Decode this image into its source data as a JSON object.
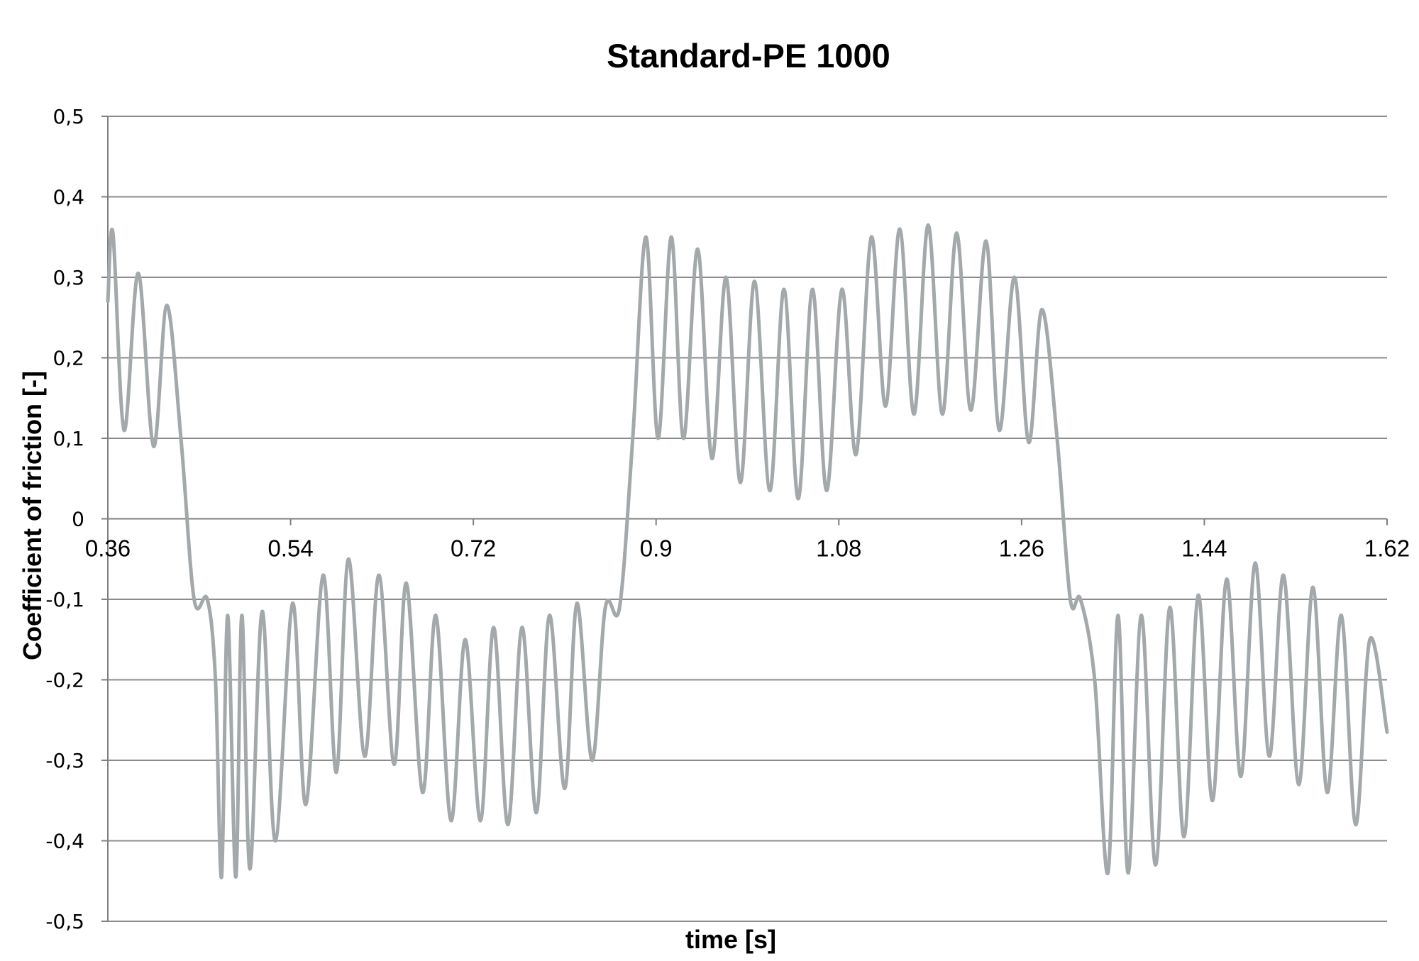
{
  "chart_data": {
    "type": "line",
    "title": "Standard-PE 1000",
    "xlabel": "time [s]",
    "ylabel": "Coefficient of friction [-]",
    "xlim": [
      0.36,
      1.62
    ],
    "ylim": [
      -0.5,
      0.5
    ],
    "x_ticks": [
      0.36,
      0.54,
      0.72,
      0.9,
      1.08,
      1.26,
      1.44,
      1.62
    ],
    "x_tick_labels": [
      "0.36",
      "0.54",
      "0.72",
      "0.9",
      "1.08",
      "1.26",
      "1.44",
      "1.62"
    ],
    "y_ticks": [
      0.5,
      0.4,
      0.3,
      0.2,
      0.1,
      0,
      -0.1,
      -0.2,
      -0.3,
      -0.4,
      -0.5
    ],
    "y_tick_labels": [
      "0,5",
      "0,4",
      "0,3",
      "0,2",
      "0,1",
      "0",
      "-0,1",
      "-0,2",
      "-0,3",
      "-0,4",
      "-0,5"
    ],
    "grid": true,
    "legend": "none",
    "colors": {
      "line": "#a3a8aa",
      "grid": "#8c8c8c",
      "axis": "#7f7f7f"
    },
    "series": [
      {
        "x": [
          0.36,
          0.365,
          0.376,
          0.39,
          0.405,
          0.418,
          0.432,
          0.445,
          0.458,
          0.466,
          0.472,
          0.478,
          0.486,
          0.492,
          0.5,
          0.512,
          0.525,
          0.542,
          0.555,
          0.572,
          0.585,
          0.597,
          0.613,
          0.627,
          0.642,
          0.654,
          0.67,
          0.683,
          0.698,
          0.712,
          0.727,
          0.74,
          0.754,
          0.768,
          0.782,
          0.795,
          0.81,
          0.822,
          0.837,
          0.85,
          0.864,
          0.877,
          0.89,
          0.902,
          0.915,
          0.927,
          0.941,
          0.955,
          0.969,
          0.983,
          0.997,
          1.012,
          1.026,
          1.04,
          1.054,
          1.068,
          1.083,
          1.097,
          1.112,
          1.126,
          1.14,
          1.154,
          1.168,
          1.182,
          1.196,
          1.21,
          1.225,
          1.238,
          1.253,
          1.267,
          1.28,
          1.295,
          1.308,
          1.318,
          1.332,
          1.345,
          1.355,
          1.365,
          1.378,
          1.392,
          1.406,
          1.42,
          1.434,
          1.448,
          1.462,
          1.476,
          1.49,
          1.504,
          1.518,
          1.533,
          1.547,
          1.561,
          1.575,
          1.589,
          1.603,
          1.62
        ],
        "y": [
          0.27,
          0.355,
          0.11,
          0.305,
          0.09,
          0.265,
          0.1,
          -0.1,
          -0.1,
          -0.2,
          -0.445,
          -0.12,
          -0.445,
          -0.12,
          -0.435,
          -0.115,
          -0.4,
          -0.105,
          -0.355,
          -0.07,
          -0.315,
          -0.05,
          -0.295,
          -0.07,
          -0.305,
          -0.08,
          -0.34,
          -0.12,
          -0.375,
          -0.15,
          -0.375,
          -0.135,
          -0.38,
          -0.135,
          -0.365,
          -0.12,
          -0.335,
          -0.105,
          -0.3,
          -0.11,
          -0.11,
          0.1,
          0.35,
          0.1,
          0.35,
          0.1,
          0.335,
          0.075,
          0.3,
          0.045,
          0.295,
          0.035,
          0.285,
          0.025,
          0.285,
          0.035,
          0.285,
          0.08,
          0.35,
          0.14,
          0.36,
          0.13,
          0.365,
          0.13,
          0.355,
          0.135,
          0.345,
          0.11,
          0.3,
          0.095,
          0.26,
          0.1,
          -0.1,
          -0.1,
          -0.2,
          -0.44,
          -0.12,
          -0.44,
          -0.12,
          -0.43,
          -0.11,
          -0.395,
          -0.095,
          -0.35,
          -0.075,
          -0.32,
          -0.055,
          -0.295,
          -0.07,
          -0.33,
          -0.085,
          -0.34,
          -0.12,
          -0.38,
          -0.15,
          -0.265
        ]
      }
    ]
  }
}
